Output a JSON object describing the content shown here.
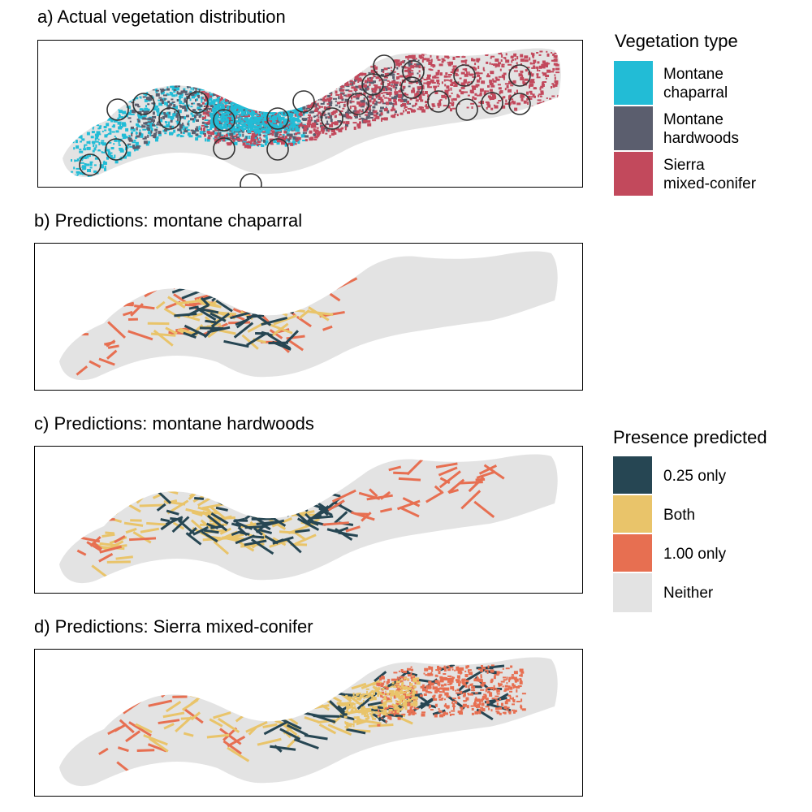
{
  "panels": [
    {
      "id": "a",
      "title": "a) Actual vegetation distribution"
    },
    {
      "id": "b",
      "title": "b) Predictions: montane chaparral"
    },
    {
      "id": "c",
      "title": "c) Predictions: montane hardwoods"
    },
    {
      "id": "d",
      "title": "d) Predictions: Sierra mixed-conifer"
    }
  ],
  "legend_vegetation": {
    "title": "Vegetation type",
    "items": [
      {
        "label": "Montane\nchaparral",
        "color": "#22bcd6"
      },
      {
        "label": "Montane\nhardwoods",
        "color": "#5b5e6e"
      },
      {
        "label": "Sierra\nmixed-conifer",
        "color": "#c2495c"
      }
    ]
  },
  "legend_presence": {
    "title": "Presence predicted",
    "items": [
      {
        "label": "0.25 only",
        "color": "#264653"
      },
      {
        "label": "Both",
        "color": "#e9c46a"
      },
      {
        "label": "1.00 only",
        "color": "#e76f51"
      },
      {
        "label": "Neither",
        "color": "#e3e3e3"
      }
    ]
  },
  "colors": {
    "background_region": "#e3e3e3",
    "plot_circle_stroke": "#333333"
  }
}
